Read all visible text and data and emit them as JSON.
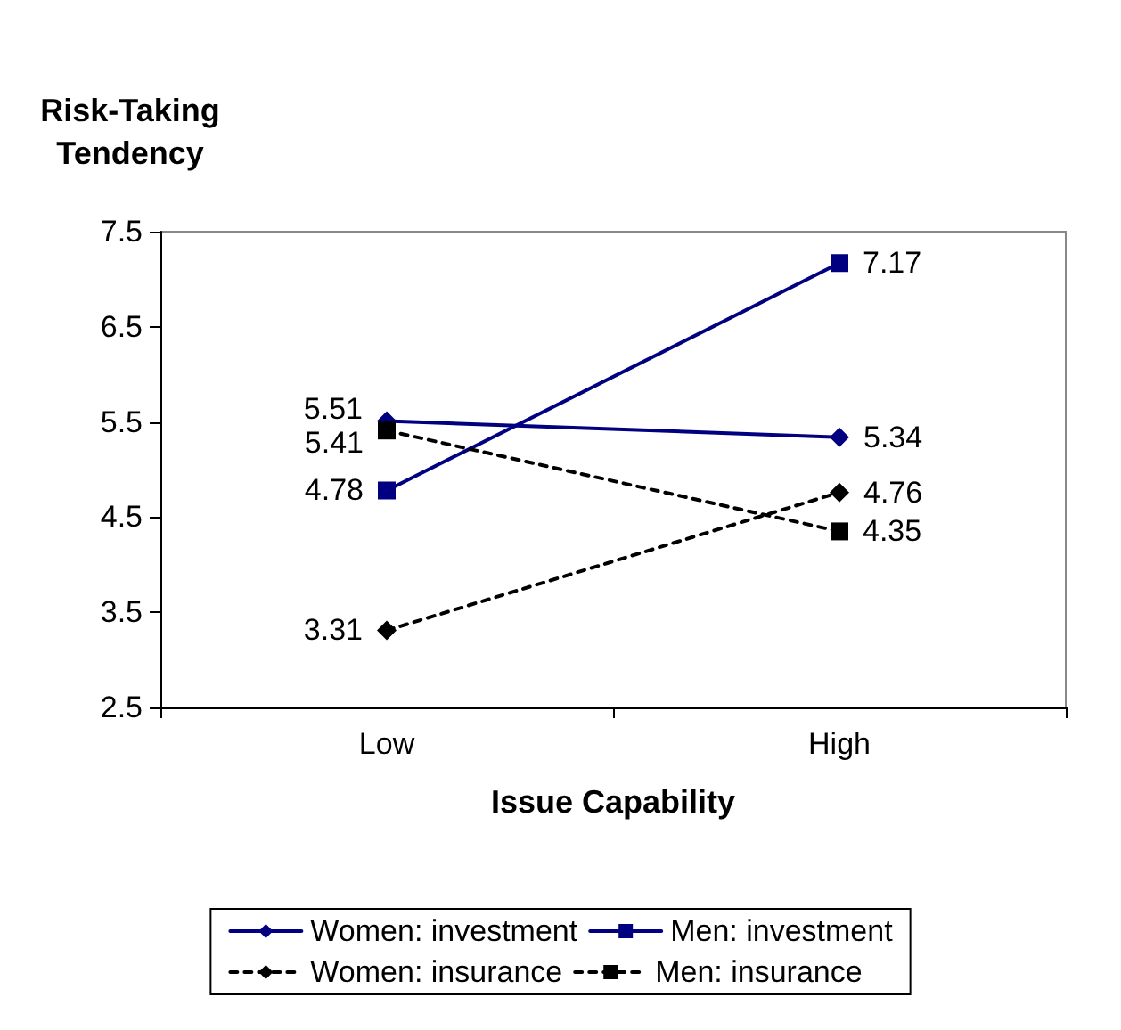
{
  "chart_data": {
    "type": "line",
    "ylabel": "Risk-Taking\nTendency",
    "xlabel": "Issue Capability",
    "categories": [
      "Low",
      "High"
    ],
    "series": [
      {
        "name": "Women: investment",
        "color": "#000080",
        "values": [
          5.51,
          5.34
        ],
        "marker": "diamond",
        "line_style": "solid"
      },
      {
        "name": "Men: investment",
        "color": "#000080",
        "values": [
          4.78,
          7.17
        ],
        "marker": "square",
        "line_style": "solid"
      },
      {
        "name": "Women: insurance",
        "color": "#000000",
        "values": [
          3.31,
          4.76
        ],
        "marker": "diamond",
        "line_style": "dashed"
      },
      {
        "name": "Men: insurance",
        "color": "#000000",
        "values": [
          5.41,
          4.35
        ],
        "marker": "square",
        "line_style": "dashed"
      }
    ],
    "ylim": [
      2.5,
      7.5
    ],
    "yticks": [
      2.5,
      3.5,
      4.5,
      5.5,
      6.5,
      7.5
    ],
    "grid": false,
    "legend": "bottom",
    "data_labels": true
  }
}
